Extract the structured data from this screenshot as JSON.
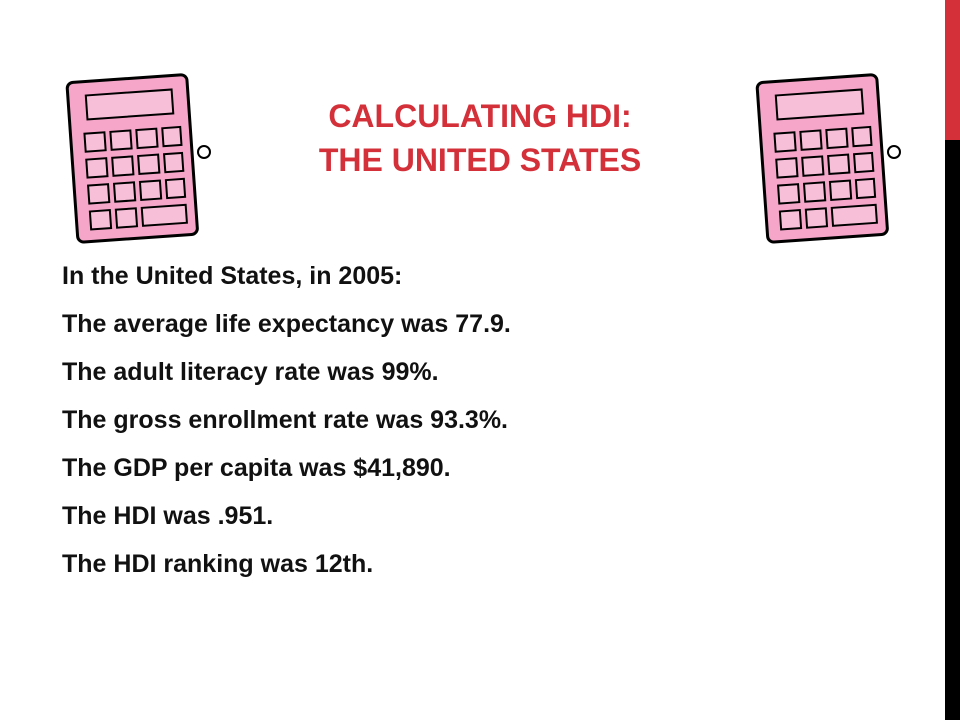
{
  "title": [
    "CALCULATING HDI:",
    "THE UNITED STATES"
  ],
  "body": [
    "In the United States, in 2005:",
    "The average life expectancy was 77.9.",
    "The adult literacy rate was 99%.",
    "The gross enrollment rate was 93.3%.",
    "The GDP per capita was $41,890.",
    "The HDI was .951.",
    "The HDI ranking was 12th."
  ]
}
